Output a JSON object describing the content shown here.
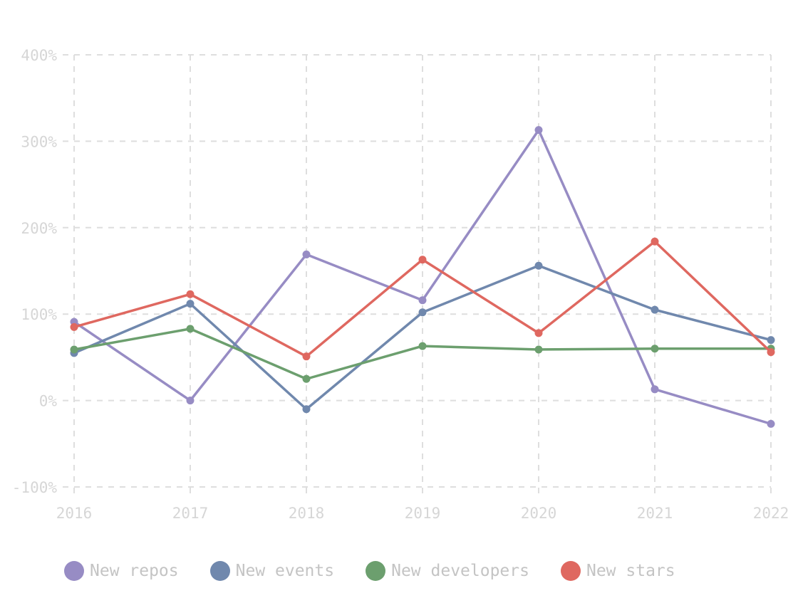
{
  "chart_data": {
    "type": "line",
    "title": "",
    "xlabel": "",
    "ylabel": "",
    "categories": [
      "2016",
      "2017",
      "2018",
      "2019",
      "2020",
      "2021",
      "2022"
    ],
    "ylim": [
      -100,
      400
    ],
    "yticks": [
      400,
      300,
      200,
      100,
      0,
      -100
    ],
    "ytick_labels": [
      "400%",
      "300%",
      "200%",
      "100%",
      "0%",
      "-100%"
    ],
    "grid": true,
    "legend_position": "bottom",
    "series": [
      {
        "name": "New repos",
        "color": "#978cc4",
        "values": [
          91,
          0,
          169,
          116,
          313,
          13,
          -27
        ]
      },
      {
        "name": "New events",
        "color": "#7088ad",
        "values": [
          55,
          112,
          -10,
          102,
          156,
          105,
          70
        ]
      },
      {
        "name": "New developers",
        "color": "#6c9f6e",
        "values": [
          59,
          83,
          25,
          63,
          59,
          60,
          60
        ]
      },
      {
        "name": "New stars",
        "color": "#df6860",
        "values": [
          85,
          123,
          51,
          163,
          78,
          184,
          56
        ]
      }
    ]
  }
}
